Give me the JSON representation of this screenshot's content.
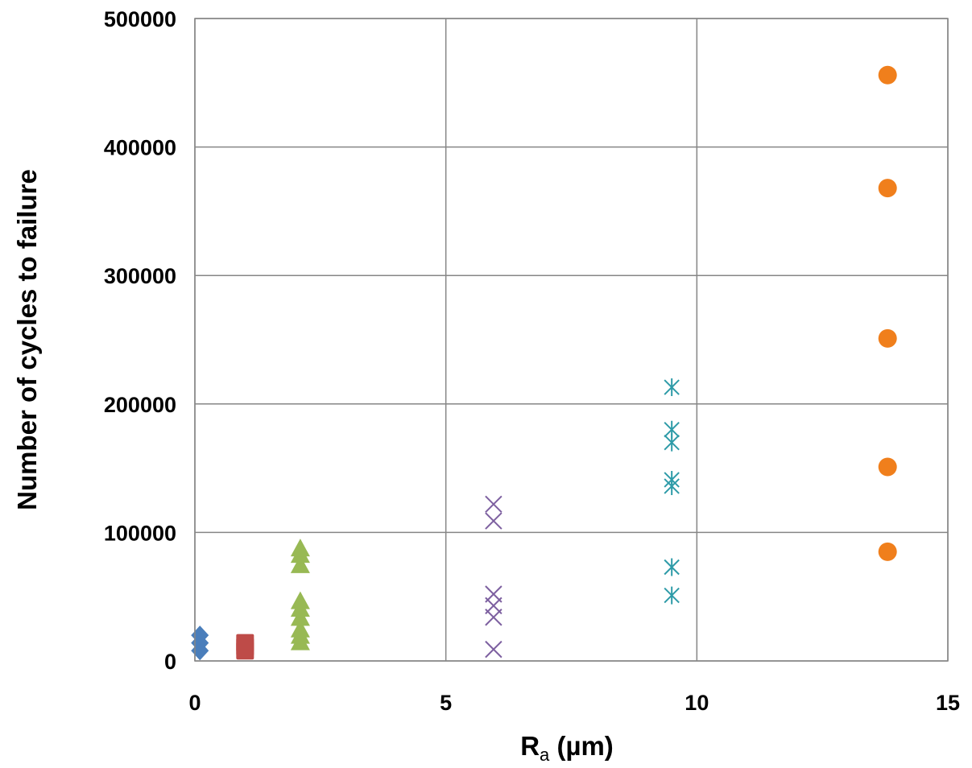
{
  "chart_data": {
    "type": "scatter",
    "xlabel_main": "R",
    "xlabel_sub": "a",
    "xlabel_rest": " (µm)",
    "ylabel": "Number of cycles to failure",
    "xlim": [
      0,
      15
    ],
    "ylim": [
      0,
      500000
    ],
    "x_ticks": [
      0,
      5,
      10,
      15
    ],
    "y_ticks": [
      0,
      100000,
      200000,
      300000,
      400000,
      500000
    ],
    "x_tick_labels": [
      "0",
      "5",
      "10",
      "15"
    ],
    "y_tick_labels": [
      "0",
      "100000",
      "200000",
      "300000",
      "400000",
      "500000"
    ],
    "grid": true,
    "legend": "none",
    "series": [
      {
        "marker": "diamond",
        "color": "#4a7ebb",
        "points": [
          [
            0.1,
            8000
          ],
          [
            0.1,
            14000
          ],
          [
            0.1,
            20000
          ]
        ]
      },
      {
        "marker": "square",
        "color": "#be4b48",
        "points": [
          [
            1.0,
            8000
          ],
          [
            1.0,
            11000
          ],
          [
            1.0,
            14000
          ]
        ]
      },
      {
        "marker": "triangle",
        "color": "#98b954",
        "points": [
          [
            2.1,
            14000
          ],
          [
            2.1,
            19000
          ],
          [
            2.1,
            24000
          ],
          [
            2.1,
            33000
          ],
          [
            2.1,
            40000
          ],
          [
            2.1,
            46000
          ],
          [
            2.1,
            74000
          ],
          [
            2.1,
            82000
          ],
          [
            2.1,
            87000
          ]
        ]
      },
      {
        "marker": "x",
        "color": "#7d60a0",
        "points": [
          [
            5.95,
            9000
          ],
          [
            5.95,
            34000
          ],
          [
            5.95,
            43000
          ],
          [
            5.95,
            52000
          ],
          [
            5.95,
            109000
          ],
          [
            5.95,
            122000
          ]
        ]
      },
      {
        "marker": "star",
        "color": "#2e9ba8",
        "points": [
          [
            9.5,
            51000
          ],
          [
            9.5,
            73000
          ],
          [
            9.5,
            136000
          ],
          [
            9.5,
            141000
          ],
          [
            9.5,
            170000
          ],
          [
            9.5,
            180000
          ],
          [
            9.5,
            213000
          ]
        ]
      },
      {
        "marker": "circle",
        "color": "#f07f1c",
        "points": [
          [
            13.8,
            85000
          ],
          [
            13.8,
            151000
          ],
          [
            13.8,
            251000
          ],
          [
            13.8,
            368000
          ],
          [
            13.8,
            456000
          ]
        ]
      }
    ]
  }
}
